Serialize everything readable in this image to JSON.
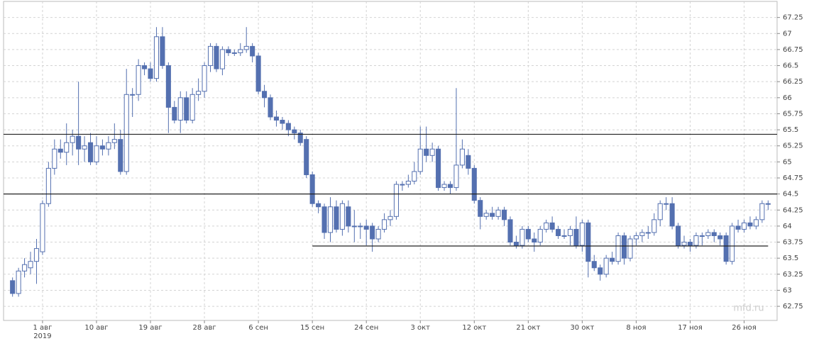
{
  "chart_data": {
    "type": "candlestick",
    "watermark": "mfd.ru",
    "year_label": "2019",
    "up_color": "#ffffff",
    "down_color": "#5470b0",
    "edge_color": "#5470b0",
    "line_color": "#222222",
    "grid": true,
    "xlim": [
      -6.5,
      122.5
    ],
    "ylim": [
      62.53,
      67.5
    ],
    "xticks": [
      {
        "value": 0,
        "label": "1 авг"
      },
      {
        "value": 9,
        "label": "10 авг"
      },
      {
        "value": 18,
        "label": "19 авг"
      },
      {
        "value": 27,
        "label": "28 авг"
      },
      {
        "value": 36,
        "label": "6 сен"
      },
      {
        "value": 45,
        "label": "15 сен"
      },
      {
        "value": 54,
        "label": "24 сен"
      },
      {
        "value": 63,
        "label": "3 окт"
      },
      {
        "value": 72,
        "label": "12 окт"
      },
      {
        "value": 81,
        "label": "21 окт"
      },
      {
        "value": 90,
        "label": "30 окт"
      },
      {
        "value": 99,
        "label": "8 ноя"
      },
      {
        "value": 108,
        "label": "17 ноя"
      },
      {
        "value": 117,
        "label": "26 ноя"
      }
    ],
    "yticks": [
      62.75,
      63,
      63.25,
      63.5,
      63.75,
      64,
      64.25,
      64.5,
      64.75,
      65,
      65.25,
      65.5,
      65.75,
      66,
      66.25,
      66.5,
      66.75,
      67,
      67.25
    ],
    "hlines": [
      {
        "value": 65.43
      },
      {
        "value": 64.5
      },
      {
        "value": 63.69,
        "x_range": [
          45,
          121
        ]
      }
    ],
    "x": [
      -5,
      -4,
      -3,
      -2,
      -1,
      0,
      1,
      2,
      3,
      4,
      5,
      6,
      7,
      8,
      9,
      10,
      11,
      12,
      13,
      14,
      15,
      16,
      17,
      18,
      19,
      20,
      21,
      22,
      23,
      24,
      25,
      26,
      27,
      28,
      29,
      30,
      31,
      32,
      33,
      34,
      35,
      36,
      37,
      38,
      39,
      40,
      41,
      42,
      43,
      44,
      45,
      46,
      47,
      48,
      49,
      50,
      51,
      52,
      53,
      54,
      55,
      56,
      57,
      58,
      59,
      60,
      61,
      62,
      63,
      64,
      65,
      66,
      67,
      68,
      69,
      70,
      71,
      72,
      73,
      74,
      75,
      76,
      77,
      78,
      79,
      80,
      81,
      82,
      83,
      84,
      85,
      86,
      87,
      88,
      89,
      90,
      91,
      92,
      93,
      94,
      95,
      96,
      97,
      98,
      99,
      100,
      101,
      102,
      103,
      104,
      105,
      106,
      107,
      108,
      109,
      110,
      111,
      112,
      113,
      114,
      115,
      116,
      117,
      118,
      119,
      120,
      121
    ],
    "open": [
      63.15,
      62.95,
      63.3,
      63.35,
      63.45,
      63.6,
      64.35,
      64.9,
      65.2,
      65.15,
      65.3,
      65.4,
      65.2,
      65.3,
      65.0,
      65.25,
      65.2,
      65.3,
      65.35,
      64.85,
      66.05,
      66.05,
      66.5,
      66.45,
      66.3,
      66.95,
      66.5,
      65.85,
      65.65,
      66.0,
      65.65,
      66.05,
      66.1,
      66.5,
      66.8,
      66.45,
      66.75,
      66.7,
      66.7,
      66.75,
      66.8,
      66.65,
      66.1,
      66.0,
      65.7,
      65.65,
      65.6,
      65.5,
      65.45,
      65.35,
      64.8,
      64.35,
      64.3,
      63.9,
      64.3,
      63.95,
      64.3,
      64.0,
      64.0,
      64.0,
      64.0,
      63.8,
      63.95,
      64.1,
      64.15,
      64.65,
      64.65,
      64.7,
      64.85,
      65.2,
      65.1,
      65.2,
      64.6,
      64.65,
      64.6,
      64.95,
      65.1,
      64.9,
      64.4,
      64.15,
      64.2,
      64.15,
      64.25,
      64.1,
      63.75,
      63.7,
      63.95,
      63.8,
      63.75,
      63.95,
      64.05,
      63.95,
      63.85,
      63.85,
      63.95,
      63.7,
      64.05,
      63.45,
      63.35,
      63.25,
      63.5,
      63.45,
      63.85,
      63.5,
      63.8,
      63.85,
      63.9,
      63.9,
      64.1,
      64.35,
      64.35,
      64.0,
      63.7,
      63.75,
      63.7,
      63.85,
      63.85,
      63.9,
      63.85,
      63.85,
      63.45,
      64.0,
      63.95,
      64.05,
      64.0,
      64.1,
      64.35
    ],
    "high": [
      63.2,
      63.35,
      63.5,
      63.6,
      63.8,
      64.4,
      65.0,
      65.35,
      65.35,
      65.6,
      65.5,
      66.25,
      65.4,
      65.45,
      65.4,
      65.35,
      65.4,
      65.6,
      65.5,
      66.45,
      66.15,
      66.6,
      66.55,
      66.55,
      67.1,
      67.1,
      66.55,
      65.95,
      66.1,
      66.1,
      66.15,
      66.3,
      66.55,
      66.85,
      66.85,
      66.8,
      66.8,
      66.75,
      66.85,
      67.1,
      66.85,
      66.7,
      66.2,
      66.05,
      65.8,
      65.7,
      65.65,
      65.55,
      65.5,
      65.4,
      64.85,
      64.4,
      64.35,
      64.45,
      64.4,
      64.4,
      64.4,
      64.25,
      64.05,
      64.1,
      64.05,
      64.0,
      64.2,
      64.25,
      64.7,
      64.7,
      64.8,
      65.0,
      65.55,
      65.55,
      65.3,
      65.25,
      64.7,
      64.7,
      66.15,
      65.35,
      65.2,
      64.95,
      64.45,
      64.25,
      64.3,
      64.3,
      64.3,
      64.15,
      63.85,
      64.0,
      64.0,
      63.9,
      64.0,
      64.1,
      64.15,
      64.0,
      63.95,
      64.0,
      64.15,
      64.1,
      64.1,
      63.55,
      63.4,
      63.55,
      63.6,
      63.9,
      63.9,
      63.85,
      63.9,
      63.95,
      64.0,
      64.2,
      64.4,
      64.45,
      64.45,
      64.05,
      63.85,
      63.8,
      63.9,
      63.9,
      63.95,
      63.95,
      63.9,
      63.9,
      64.05,
      64.1,
      64.1,
      64.15,
      64.15,
      64.4,
      64.4
    ],
    "low": [
      62.9,
      62.9,
      63.2,
      63.25,
      63.1,
      63.55,
      64.3,
      64.8,
      65.05,
      64.95,
      65.1,
      64.95,
      65.0,
      64.95,
      64.95,
      65.1,
      65.1,
      65.2,
      64.8,
      64.8,
      65.7,
      65.95,
      66.35,
      66.25,
      66.25,
      66.45,
      65.45,
      65.6,
      65.45,
      65.6,
      65.6,
      65.95,
      66.0,
      66.4,
      66.4,
      66.35,
      66.65,
      66.65,
      66.65,
      66.7,
      66.55,
      66.05,
      65.85,
      65.65,
      65.55,
      65.5,
      65.4,
      65.35,
      65.25,
      64.75,
      64.3,
      64.2,
      63.8,
      63.75,
      63.9,
      63.85,
      63.9,
      63.75,
      63.8,
      63.7,
      63.6,
      63.75,
      63.9,
      64.0,
      64.1,
      64.55,
      64.6,
      64.65,
      64.8,
      65.0,
      65.0,
      64.55,
      64.55,
      64.5,
      64.55,
      64.9,
      64.8,
      64.35,
      63.95,
      64.1,
      64.1,
      64.1,
      64.0,
      63.7,
      63.65,
      63.65,
      63.75,
      63.6,
      63.7,
      63.9,
      63.9,
      63.8,
      63.8,
      63.7,
      63.65,
      63.6,
      63.2,
      63.3,
      63.15,
      63.2,
      63.4,
      63.4,
      63.4,
      63.45,
      63.7,
      63.75,
      63.8,
      63.85,
      64.0,
      64.25,
      63.95,
      63.65,
      63.65,
      63.6,
      63.65,
      63.7,
      63.8,
      63.75,
      63.7,
      63.4,
      63.4,
      63.9,
      63.9,
      63.95,
      63.95,
      64.05,
      64.25
    ],
    "close": [
      62.95,
      63.3,
      63.4,
      63.45,
      63.65,
      64.35,
      64.9,
      65.2,
      65.15,
      65.3,
      65.4,
      65.2,
      65.25,
      65.0,
      65.25,
      65.2,
      65.3,
      65.35,
      64.85,
      66.05,
      66.05,
      66.5,
      66.45,
      66.3,
      66.95,
      66.5,
      65.85,
      65.65,
      66.0,
      65.65,
      66.05,
      66.1,
      66.5,
      66.8,
      66.45,
      66.75,
      66.7,
      66.7,
      66.75,
      66.8,
      66.65,
      66.1,
      66.0,
      65.7,
      65.65,
      65.6,
      65.5,
      65.45,
      65.3,
      64.8,
      64.35,
      64.3,
      63.9,
      64.3,
      63.95,
      64.35,
      64.0,
      64.0,
      64.0,
      63.95,
      63.8,
      63.95,
      64.1,
      64.15,
      64.65,
      64.65,
      64.7,
      64.85,
      65.2,
      65.1,
      65.2,
      64.6,
      64.65,
      64.6,
      64.95,
      65.2,
      64.9,
      64.4,
      64.15,
      64.2,
      64.15,
      64.25,
      64.1,
      63.75,
      63.7,
      63.95,
      63.8,
      63.75,
      63.95,
      64.05,
      63.95,
      63.85,
      63.85,
      63.95,
      63.7,
      64.05,
      63.45,
      63.35,
      63.25,
      63.5,
      63.45,
      63.85,
      63.5,
      63.8,
      63.85,
      63.9,
      63.9,
      64.1,
      64.35,
      64.35,
      64.0,
      63.7,
      63.75,
      63.7,
      63.85,
      63.85,
      63.9,
      63.85,
      63.8,
      63.45,
      64.0,
      63.95,
      64.05,
      64.0,
      64.1,
      64.35,
      64.35
    ]
  }
}
